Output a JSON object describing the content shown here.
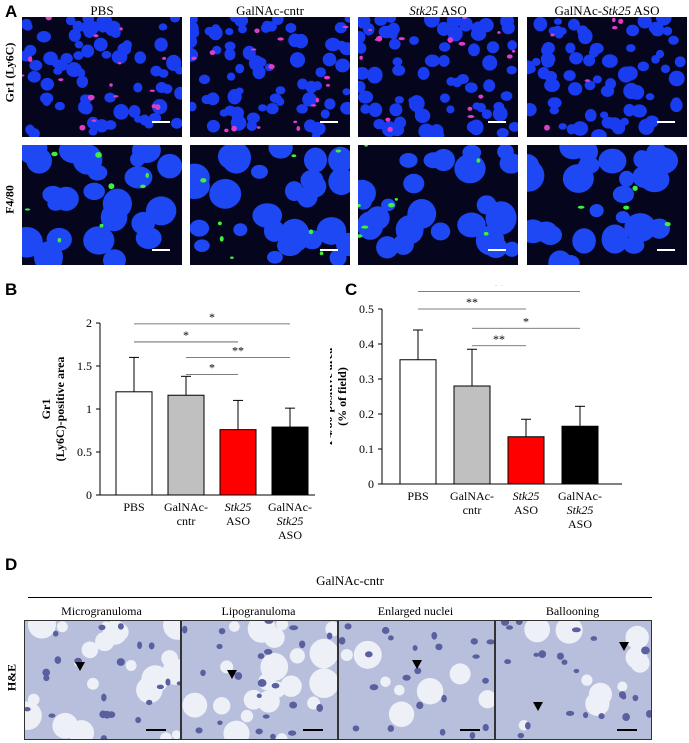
{
  "panel_a": {
    "letter": "A",
    "columns": [
      "PBS",
      "GalNAc-cntr",
      "Stk25 ASO",
      "GalNAc-Stk25 ASO"
    ],
    "rows": [
      "Gr1 (Ly6C)",
      "F4/80"
    ]
  },
  "panel_b": {
    "letter": "B",
    "signif": [
      "*",
      "*",
      "**",
      "*"
    ]
  },
  "panel_c": {
    "letter": "C",
    "signif": [
      "**",
      "**",
      "*",
      "**"
    ]
  },
  "panel_d": {
    "letter": "D",
    "group_title": "GalNAc-cntr",
    "row_label": "H&E",
    "titles": [
      "Microgranuloma",
      "Lipogranuloma",
      "Enlarged nuclei",
      "Ballooning"
    ]
  },
  "chart_data": [
    {
      "type": "bar",
      "ylabel": "Gr1 (Ly6C)-positive area (% of field)",
      "ylim": [
        0,
        2
      ],
      "yticks": [
        "0",
        "0.5",
        "1",
        "1.5",
        "2"
      ],
      "categories": [
        "PBS",
        "GalNAc-cntr",
        "Stk25 ASO",
        "GalNAc-Stk25 ASO"
      ],
      "values": [
        1.2,
        1.16,
        0.76,
        0.79
      ],
      "errors": [
        0.4,
        0.22,
        0.34,
        0.22
      ],
      "colors": [
        "#ffffff",
        "#c0c0c0",
        "#ff0000",
        "#000000"
      ]
    },
    {
      "type": "bar",
      "ylabel": "F4/80-positive area (% of field)",
      "ylim": [
        0,
        0.5
      ],
      "yticks": [
        "0",
        "0.1",
        "0.2",
        "0.3",
        "0.4",
        "0.5"
      ],
      "categories": [
        "PBS",
        "GalNAc-cntr",
        "Stk25 ASO",
        "GalNAc-Stk25 ASO"
      ],
      "values": [
        0.355,
        0.28,
        0.135,
        0.165
      ],
      "errors": [
        0.085,
        0.105,
        0.05,
        0.057
      ],
      "colors": [
        "#ffffff",
        "#c0c0c0",
        "#ff0000",
        "#000000"
      ]
    }
  ]
}
